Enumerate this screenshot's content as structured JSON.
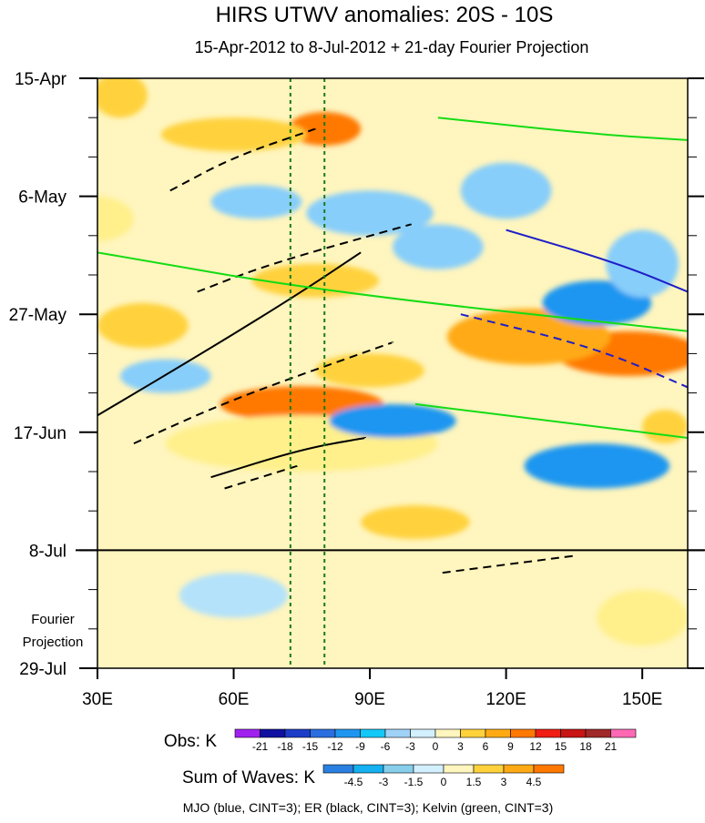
{
  "chart_data": {
    "type": "heatmap",
    "title": "HIRS UTWV anomalies: 20S - 10S",
    "subtitle": "15-Apr-2012 to 8-Jul-2012 + 21-day Fourier Projection",
    "x_axis": {
      "range": [
        30,
        160
      ],
      "ticks": [
        {
          "value": 30,
          "label": "30E"
        },
        {
          "value": 60,
          "label": "60E"
        },
        {
          "value": 90,
          "label": "90E"
        },
        {
          "value": 120,
          "label": "120E"
        },
        {
          "value": 150,
          "label": "150E"
        }
      ]
    },
    "y_axis": {
      "unit": "day since 15-Apr-2012",
      "range": [
        0,
        105
      ],
      "ticks": [
        {
          "value": 0,
          "label": "15-Apr"
        },
        {
          "value": 21,
          "label": "6-May"
        },
        {
          "value": 42,
          "label": "27-May"
        },
        {
          "value": 63,
          "label": "17-Jun"
        },
        {
          "value": 84,
          "label": "8-Jul"
        },
        {
          "value": 105,
          "label": "29-Jul"
        }
      ],
      "minor_ticks": [
        7,
        14,
        28,
        35,
        49,
        56,
        70,
        77,
        91,
        98
      ]
    },
    "projection_line_day": 84,
    "projection_label": [
      "Fourier",
      "Projection"
    ],
    "reference_lines_lon": [
      72.5,
      80
    ],
    "obs_legend": {
      "title": "Obs: K",
      "labels": [
        "-21",
        "-18",
        "-15",
        "-12",
        "-9",
        "-6",
        "-3",
        "0",
        "3",
        "6",
        "9",
        "12",
        "15",
        "18",
        "21"
      ],
      "colors": [
        "#a020f0",
        "#1010a0",
        "#1c3cc8",
        "#2a6ee0",
        "#1e96f0",
        "#14c8f8",
        "#a0d2f8",
        "#d2f0ff",
        "#fff5be",
        "#ffd23c",
        "#ffaa14",
        "#ff7800",
        "#f01e14",
        "#c81414",
        "#a02828",
        "#ff69b4"
      ]
    },
    "waves_legend": {
      "title": "Sum of Waves: K",
      "labels": [
        "-4.5",
        "-3",
        "-1.5",
        "0",
        "1.5",
        "3",
        "4.5"
      ],
      "colors": [
        "#2a80e0",
        "#14b0f0",
        "#87ceeb",
        "#d2f0ff",
        "#fff5be",
        "#ffd23c",
        "#ffaa14",
        "#ff7800"
      ]
    },
    "footer": "MJO (blue, CINT=3); ER (black, CINT=3); Kelvin (green, CINT=3)",
    "anomaly_features": [
      {
        "lon": 75,
        "day": 58,
        "value": 12,
        "rx": 18,
        "ry": 3.2
      },
      {
        "lon": 80,
        "day": 9,
        "value": 12,
        "rx": 8,
        "ry": 3
      },
      {
        "lon": 147,
        "day": 49,
        "value": 12,
        "rx": 16,
        "ry": 4
      },
      {
        "lon": 125,
        "day": 46,
        "value": 9,
        "rx": 18,
        "ry": 5
      },
      {
        "lon": 78,
        "day": 36,
        "value": 6,
        "rx": 14,
        "ry": 3
      },
      {
        "lon": 60,
        "day": 10,
        "value": 6,
        "rx": 16,
        "ry": 3
      },
      {
        "lon": 90,
        "day": 52,
        "value": 6,
        "rx": 12,
        "ry": 3
      },
      {
        "lon": 40,
        "day": 44,
        "value": 6,
        "rx": 10,
        "ry": 4
      },
      {
        "lon": 35,
        "day": 3,
        "value": 6,
        "rx": 6,
        "ry": 4
      },
      {
        "lon": 100,
        "day": 79,
        "value": 6,
        "rx": 12,
        "ry": 3
      },
      {
        "lon": 155,
        "day": 62,
        "value": 6,
        "rx": 5,
        "ry": 3
      },
      {
        "lon": 75,
        "day": 65,
        "value": 3,
        "rx": 30,
        "ry": 5
      },
      {
        "lon": 30,
        "day": 25,
        "value": 3,
        "rx": 8,
        "ry": 4
      },
      {
        "lon": 150,
        "day": 96,
        "value": 3,
        "rx": 10,
        "ry": 5
      },
      {
        "lon": 65,
        "day": 22,
        "value": -6,
        "rx": 10,
        "ry": 3
      },
      {
        "lon": 90,
        "day": 24,
        "value": -6,
        "rx": 14,
        "ry": 4
      },
      {
        "lon": 120,
        "day": 20,
        "value": -6,
        "rx": 10,
        "ry": 5
      },
      {
        "lon": 140,
        "day": 40,
        "value": -9,
        "rx": 12,
        "ry": 4
      },
      {
        "lon": 140,
        "day": 69,
        "value": -9,
        "rx": 16,
        "ry": 4
      },
      {
        "lon": 95,
        "day": 61,
        "value": -9,
        "rx": 14,
        "ry": 3
      },
      {
        "lon": 45,
        "day": 53,
        "value": -6,
        "rx": 10,
        "ry": 3
      },
      {
        "lon": 60,
        "day": 92,
        "value": -3,
        "rx": 12,
        "ry": 4
      },
      {
        "lon": 105,
        "day": 30,
        "value": -6,
        "rx": 10,
        "ry": 4
      },
      {
        "lon": 150,
        "day": 33,
        "value": -6,
        "rx": 8,
        "ry": 6
      }
    ],
    "contours": [
      {
        "wave": "ER",
        "sign": "positive",
        "points": [
          [
            30,
            60
          ],
          [
            55,
            48
          ],
          [
            75,
            38
          ],
          [
            88,
            31
          ]
        ]
      },
      {
        "wave": "ER",
        "sign": "positive",
        "points": [
          [
            55,
            71
          ],
          [
            75,
            66
          ],
          [
            89,
            64
          ]
        ]
      },
      {
        "wave": "ER",
        "sign": "negative",
        "points": [
          [
            46,
            20
          ],
          [
            60,
            14
          ],
          [
            78,
            9
          ]
        ]
      },
      {
        "wave": "ER",
        "sign": "negative",
        "points": [
          [
            52,
            38
          ],
          [
            68,
            33
          ],
          [
            99,
            26
          ]
        ]
      },
      {
        "wave": "ER",
        "sign": "negative",
        "points": [
          [
            38,
            65
          ],
          [
            60,
            57
          ],
          [
            95,
            47
          ]
        ]
      },
      {
        "wave": "ER",
        "sign": "negative",
        "points": [
          [
            58,
            73
          ],
          [
            74,
            69
          ]
        ]
      },
      {
        "wave": "ER",
        "sign": "negative",
        "points": [
          [
            106,
            88
          ],
          [
            135,
            85
          ]
        ]
      },
      {
        "wave": "MJO",
        "sign": "negative",
        "points": [
          [
            110,
            42
          ],
          [
            140,
            48
          ],
          [
            160,
            55
          ]
        ]
      },
      {
        "wave": "MJO",
        "sign": "positive",
        "points": [
          [
            120,
            27
          ],
          [
            145,
            33
          ],
          [
            160,
            38
          ]
        ]
      },
      {
        "wave": "Kelvin",
        "sign": "positive",
        "points": [
          [
            30,
            31
          ],
          [
            80,
            38
          ],
          [
            160,
            45
          ]
        ]
      },
      {
        "wave": "Kelvin",
        "sign": "positive",
        "points": [
          [
            100,
            58
          ],
          [
            140,
            62
          ],
          [
            160,
            64
          ]
        ]
      },
      {
        "wave": "Kelvin",
        "sign": "positive",
        "points": [
          [
            105,
            7
          ],
          [
            140,
            10
          ],
          [
            160,
            11
          ]
        ]
      }
    ]
  }
}
